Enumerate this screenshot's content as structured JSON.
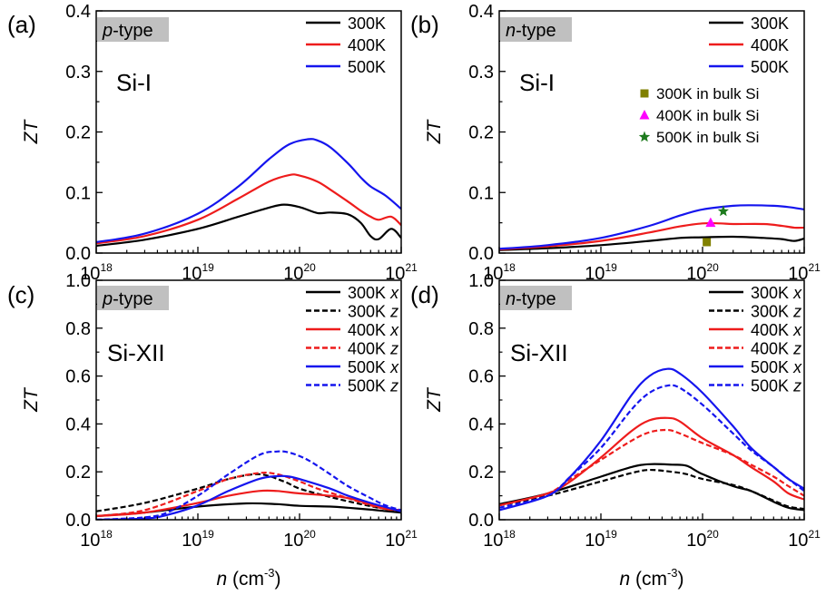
{
  "figure": {
    "xlabel_var": "n",
    "xlabel_unit": " (cm",
    "xlabel_exp": "-3",
    "xlabel_close": ")",
    "ylabel": "ZT"
  },
  "chart_data": [
    {
      "panel": "(a)",
      "type": "line",
      "tag_italic": "p",
      "tag_rest": "-type",
      "material": "Si-I",
      "xscale": "log",
      "xlim": [
        1e+18,
        1e+21
      ],
      "ylim": [
        0,
        0.4
      ],
      "yticks": [
        "0.0",
        "0.1",
        "0.2",
        "0.3",
        "0.4"
      ],
      "xticks": [
        {
          "base": "10",
          "exp": "18"
        },
        {
          "base": "10",
          "exp": "19"
        },
        {
          "base": "10",
          "exp": "20"
        },
        {
          "base": "10",
          "exp": "21"
        }
      ],
      "legend_position": "top-right",
      "series": [
        {
          "name": "300K",
          "color": "#000000",
          "dash": "solid",
          "x": [
            1e+18,
            3e+18,
            1e+19,
            2.5e+19,
            5e+19,
            7e+19,
            1e+20,
            1.5e+20,
            2e+20,
            3e+20,
            4e+20,
            5e+20,
            6e+20,
            8e+20,
            1e+21
          ],
          "y": [
            0.012,
            0.022,
            0.04,
            0.06,
            0.075,
            0.08,
            0.076,
            0.066,
            0.067,
            0.064,
            0.05,
            0.028,
            0.023,
            0.04,
            0.025
          ]
        },
        {
          "name": "400K",
          "color": "#ee1c1c",
          "dash": "solid",
          "x": [
            1e+18,
            3e+18,
            1e+19,
            2.5e+19,
            5e+19,
            8e+19,
            1e+20,
            1.5e+20,
            2e+20,
            3e+20,
            4e+20,
            5e+20,
            6e+20,
            8e+20,
            1e+21
          ],
          "y": [
            0.016,
            0.028,
            0.055,
            0.09,
            0.118,
            0.129,
            0.128,
            0.118,
            0.105,
            0.085,
            0.07,
            0.06,
            0.055,
            0.06,
            0.046
          ]
        },
        {
          "name": "500K",
          "color": "#1515ee",
          "dash": "solid",
          "x": [
            1e+18,
            3e+18,
            1e+19,
            2.5e+19,
            5e+19,
            8e+19,
            1.2e+20,
            1.5e+20,
            2e+20,
            3e+20,
            4e+20,
            5e+20,
            7e+20,
            1e+21
          ],
          "y": [
            0.018,
            0.032,
            0.065,
            0.11,
            0.155,
            0.18,
            0.188,
            0.186,
            0.175,
            0.148,
            0.125,
            0.11,
            0.095,
            0.073
          ]
        }
      ]
    },
    {
      "panel": "(b)",
      "type": "line",
      "tag_italic": "n",
      "tag_rest": "-type",
      "material": "Si-I",
      "xscale": "log",
      "xlim": [
        1e+18,
        1e+21
      ],
      "ylim": [
        0,
        0.4
      ],
      "yticks": [
        "0.0",
        "0.1",
        "0.2",
        "0.3",
        "0.4"
      ],
      "xticks": [
        {
          "base": "10",
          "exp": "18"
        },
        {
          "base": "10",
          "exp": "19"
        },
        {
          "base": "10",
          "exp": "20"
        },
        {
          "base": "10",
          "exp": "21"
        }
      ],
      "legend_position": "top-right",
      "series": [
        {
          "name": "300K",
          "color": "#000000",
          "dash": "solid",
          "x": [
            1e+18,
            3e+18,
            1e+19,
            3e+19,
            6e+19,
            1e+20,
            2e+20,
            4e+20,
            6e+20,
            8e+20,
            1e+21
          ],
          "y": [
            0.005,
            0.008,
            0.013,
            0.02,
            0.025,
            0.026,
            0.027,
            0.025,
            0.023,
            0.02,
            0.024
          ]
        },
        {
          "name": "400K",
          "color": "#ee1c1c",
          "dash": "solid",
          "x": [
            1e+18,
            3e+18,
            1e+19,
            3e+19,
            6e+19,
            1e+20,
            1.5e+20,
            2e+20,
            4e+20,
            6e+20,
            8e+20,
            1e+21
          ],
          "y": [
            0.006,
            0.011,
            0.02,
            0.034,
            0.044,
            0.049,
            0.049,
            0.048,
            0.048,
            0.045,
            0.042,
            0.042
          ]
        },
        {
          "name": "500K",
          "color": "#1515ee",
          "dash": "solid",
          "x": [
            1e+18,
            3e+18,
            1e+19,
            3e+19,
            6e+19,
            1e+20,
            2e+20,
            3e+20,
            5e+20,
            7e+20,
            1e+21
          ],
          "y": [
            0.007,
            0.013,
            0.025,
            0.045,
            0.062,
            0.072,
            0.078,
            0.079,
            0.078,
            0.076,
            0.072
          ]
        }
      ],
      "markers": [
        {
          "name": "300K in bulk Si",
          "shape": "square",
          "color": "#808000",
          "x": 1.1e+20,
          "y": 0.018
        },
        {
          "name": "400K in bulk Si",
          "shape": "triangle",
          "color": "#ff00ff",
          "x": 1.2e+20,
          "y": 0.05
        },
        {
          "name": "500K in bulk Si",
          "shape": "star",
          "color": "#1e7b1e",
          "x": 1.6e+20,
          "y": 0.069
        }
      ]
    },
    {
      "panel": "(c)",
      "type": "line",
      "tag_italic": "p",
      "tag_rest": "-type",
      "material": "Si-XII",
      "xscale": "log",
      "xlim": [
        1e+18,
        1e+21
      ],
      "ylim": [
        0,
        1.0
      ],
      "yticks": [
        "0.0",
        "0.2",
        "0.4",
        "0.6",
        "0.8",
        "1.0"
      ],
      "xticks": [
        {
          "base": "10",
          "exp": "18"
        },
        {
          "base": "10",
          "exp": "19"
        },
        {
          "base": "10",
          "exp": "20"
        },
        {
          "base": "10",
          "exp": "21"
        }
      ],
      "legend_position": "top-right",
      "series": [
        {
          "name": "300K",
          "axis": "x",
          "color": "#000000",
          "dash": "solid",
          "x": [
            1e+18,
            3e+18,
            1e+19,
            3e+19,
            6e+19,
            1e+20,
            2e+20,
            3e+20,
            5e+20,
            7e+20,
            1e+21
          ],
          "y": [
            0.015,
            0.03,
            0.055,
            0.068,
            0.065,
            0.058,
            0.055,
            0.05,
            0.042,
            0.036,
            0.03
          ]
        },
        {
          "name": "300K",
          "axis": "z",
          "color": "#000000",
          "dash": "dashed",
          "x": [
            1e+18,
            3e+18,
            1e+19,
            2e+19,
            4e+19,
            7e+19,
            1e+20,
            2e+20,
            4e+20,
            7e+20,
            1e+21
          ],
          "y": [
            0.035,
            0.07,
            0.13,
            0.17,
            0.19,
            0.16,
            0.13,
            0.095,
            0.065,
            0.045,
            0.035
          ]
        },
        {
          "name": "400K",
          "axis": "x",
          "color": "#ee1c1c",
          "dash": "solid",
          "x": [
            1e+18,
            3e+18,
            1e+19,
            2e+19,
            4e+19,
            6e+19,
            1e+20,
            2e+20,
            3e+20,
            5e+20,
            7e+20,
            1e+21
          ],
          "y": [
            0.015,
            0.03,
            0.07,
            0.1,
            0.12,
            0.12,
            0.11,
            0.1,
            0.09,
            0.065,
            0.045,
            0.04
          ]
        },
        {
          "name": "400K",
          "axis": "z",
          "color": "#ee1c1c",
          "dash": "dashed",
          "x": [
            1e+18,
            3e+18,
            1e+19,
            2e+19,
            4e+19,
            6e+19,
            1e+20,
            1.5e+20,
            3e+20,
            5e+20,
            7e+20,
            1e+21
          ],
          "y": [
            0.015,
            0.04,
            0.12,
            0.17,
            0.195,
            0.19,
            0.16,
            0.13,
            0.09,
            0.06,
            0.045,
            0.04
          ]
        },
        {
          "name": "500K",
          "axis": "x",
          "color": "#1515ee",
          "dash": "solid",
          "x": [
            1e+18,
            3e+18,
            5e+18,
            1e+19,
            2e+19,
            4e+19,
            6e+19,
            8e+19,
            1.2e+20,
            2e+20,
            3e+20,
            5e+20,
            1e+21
          ],
          "y": [
            0.0,
            0.005,
            0.02,
            0.06,
            0.12,
            0.17,
            0.182,
            0.18,
            0.16,
            0.13,
            0.1,
            0.07,
            0.035
          ]
        },
        {
          "name": "500K",
          "axis": "z",
          "color": "#1515ee",
          "dash": "dashed",
          "x": [
            1e+18,
            3e+18,
            5e+18,
            1e+19,
            2e+19,
            4e+19,
            6e+19,
            8e+19,
            1.2e+20,
            2e+20,
            3e+20,
            5e+20,
            7e+20,
            1e+21
          ],
          "y": [
            0.0,
            0.01,
            0.03,
            0.1,
            0.19,
            0.27,
            0.285,
            0.28,
            0.25,
            0.19,
            0.14,
            0.09,
            0.06,
            0.04
          ]
        }
      ]
    },
    {
      "panel": "(d)",
      "type": "line",
      "tag_italic": "n",
      "tag_rest": "-type",
      "material": "Si-XII",
      "xscale": "log",
      "xlim": [
        1e+18,
        1e+21
      ],
      "ylim": [
        0,
        1.0
      ],
      "yticks": [
        "0.0",
        "0.2",
        "0.4",
        "0.6",
        "0.8",
        "1.0"
      ],
      "xticks": [
        {
          "base": "10",
          "exp": "18"
        },
        {
          "base": "10",
          "exp": "19"
        },
        {
          "base": "10",
          "exp": "20"
        },
        {
          "base": "10",
          "exp": "21"
        }
      ],
      "legend_position": "top-right",
      "series": [
        {
          "name": "300K",
          "axis": "x",
          "color": "#000000",
          "dash": "solid",
          "x": [
            1e+18,
            3e+18,
            1e+19,
            2e+19,
            3e+19,
            5e+19,
            7e+19,
            1e+20,
            2e+20,
            3e+20,
            5e+20,
            7e+20,
            1e+21
          ],
          "y": [
            0.065,
            0.11,
            0.18,
            0.22,
            0.232,
            0.23,
            0.225,
            0.19,
            0.14,
            0.12,
            0.075,
            0.05,
            0.04
          ]
        },
        {
          "name": "300K",
          "axis": "z",
          "color": "#000000",
          "dash": "dashed",
          "x": [
            1e+18,
            3e+18,
            1e+19,
            2e+19,
            3e+19,
            5e+19,
            7e+19,
            1e+20,
            2e+20,
            3e+20,
            5e+20,
            7e+20,
            1e+21
          ],
          "y": [
            0.06,
            0.1,
            0.16,
            0.195,
            0.208,
            0.2,
            0.19,
            0.17,
            0.145,
            0.12,
            0.08,
            0.055,
            0.045
          ]
        },
        {
          "name": "400K",
          "axis": "x",
          "color": "#ee1c1c",
          "dash": "solid",
          "x": [
            1e+18,
            3e+18,
            5e+18,
            1e+19,
            2e+19,
            3e+19,
            4.5e+19,
            6e+19,
            1e+20,
            2e+20,
            3e+20,
            5e+20,
            7e+20,
            1e+21
          ],
          "y": [
            0.06,
            0.11,
            0.16,
            0.26,
            0.37,
            0.415,
            0.425,
            0.41,
            0.34,
            0.27,
            0.22,
            0.16,
            0.11,
            0.085
          ]
        },
        {
          "name": "400K",
          "axis": "z",
          "color": "#ee1c1c",
          "dash": "dashed",
          "x": [
            1e+18,
            3e+18,
            5e+18,
            1e+19,
            2e+19,
            3e+19,
            4.5e+19,
            6e+19,
            1e+20,
            2e+20,
            3e+20,
            5e+20,
            7e+20,
            1e+21
          ],
          "y": [
            0.06,
            0.11,
            0.17,
            0.25,
            0.33,
            0.365,
            0.375,
            0.36,
            0.32,
            0.27,
            0.23,
            0.18,
            0.14,
            0.1
          ]
        },
        {
          "name": "500K",
          "axis": "x",
          "color": "#1515ee",
          "dash": "solid",
          "x": [
            1e+18,
            3e+18,
            5e+18,
            1e+19,
            2e+19,
            3e+19,
            4.5e+19,
            6e+19,
            1e+20,
            2e+20,
            3e+20,
            5e+20,
            7e+20,
            1e+21
          ],
          "y": [
            0.04,
            0.1,
            0.18,
            0.33,
            0.52,
            0.6,
            0.63,
            0.61,
            0.53,
            0.39,
            0.3,
            0.22,
            0.17,
            0.13
          ]
        },
        {
          "name": "500K",
          "axis": "z",
          "color": "#1515ee",
          "dash": "dashed",
          "x": [
            1e+18,
            3e+18,
            5e+18,
            1e+19,
            2e+19,
            3e+19,
            4.5e+19,
            6e+19,
            1e+20,
            2e+20,
            3e+20,
            5e+20,
            7e+20,
            1e+21
          ],
          "y": [
            0.05,
            0.1,
            0.18,
            0.3,
            0.46,
            0.53,
            0.56,
            0.55,
            0.48,
            0.36,
            0.29,
            0.22,
            0.17,
            0.12
          ]
        }
      ]
    }
  ]
}
